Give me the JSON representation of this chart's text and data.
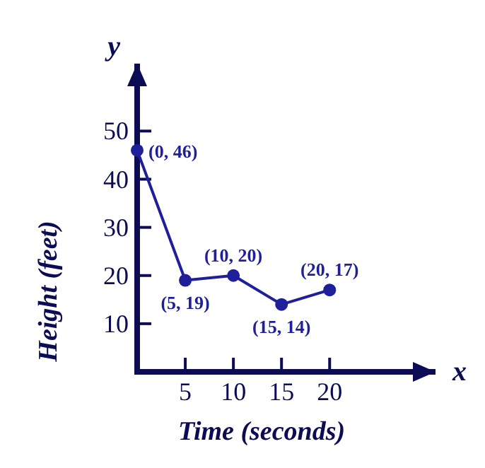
{
  "chart_data": {
    "type": "line",
    "xlabel": "Time (seconds)",
    "ylabel": "Height (feet)",
    "x": [
      0,
      5,
      10,
      15,
      20
    ],
    "series": [
      {
        "color": "#1f1f99",
        "values": [
          46,
          19,
          20,
          14,
          17
        ],
        "value_labels": [
          "(0, 46)",
          "(5, 19)",
          "(10, 20)",
          "(15, 14)",
          "(20, 17)"
        ]
      }
    ],
    "xlim": [
      0,
      31
    ],
    "ylim": [
      0,
      64
    ],
    "xticks": [
      5,
      10,
      15,
      20
    ],
    "yticks": [
      10,
      20,
      30,
      40,
      50
    ],
    "annotations": [
      "x",
      "y"
    ],
    "grid": false,
    "marker": "circle",
    "line_style": "solid"
  }
}
